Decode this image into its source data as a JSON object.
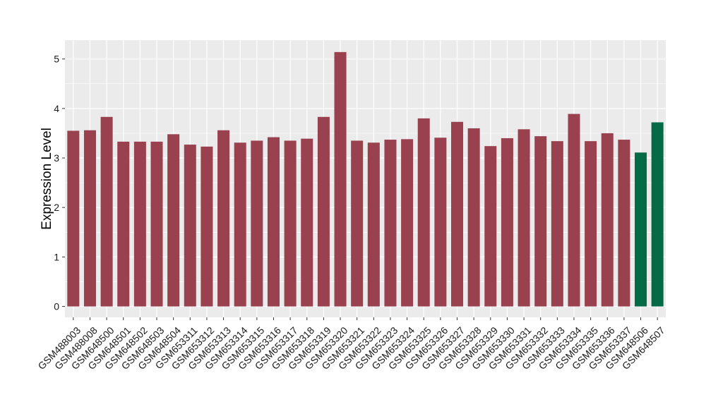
{
  "chart_data": {
    "type": "bar",
    "title": "",
    "xlabel": "",
    "ylabel": "Expression Level",
    "ylim": [
      -0.22,
      5.38
    ],
    "yticks": [
      0,
      1,
      2,
      3,
      4,
      5
    ],
    "grid": true,
    "categories": [
      "GSM488003",
      "GSM488008",
      "GSM648500",
      "GSM648501",
      "GSM648502",
      "GSM648503",
      "GSM648504",
      "GSM653311",
      "GSM653312",
      "GSM653313",
      "GSM653314",
      "GSM653315",
      "GSM653316",
      "GSM653317",
      "GSM653318",
      "GSM653319",
      "GSM653320",
      "GSM653321",
      "GSM653322",
      "GSM653323",
      "GSM653324",
      "GSM653325",
      "GSM653326",
      "GSM653327",
      "GSM653328",
      "GSM653329",
      "GSM653330",
      "GSM653331",
      "GSM653332",
      "GSM653333",
      "GSM653334",
      "GSM653335",
      "GSM653336",
      "GSM653337",
      "GSM648506",
      "GSM648507"
    ],
    "values": [
      3.55,
      3.56,
      3.83,
      3.33,
      3.33,
      3.33,
      3.48,
      3.27,
      3.23,
      3.56,
      3.31,
      3.35,
      3.42,
      3.35,
      3.39,
      3.83,
      5.14,
      3.35,
      3.31,
      3.37,
      3.38,
      3.8,
      3.41,
      3.73,
      3.6,
      3.24,
      3.4,
      3.58,
      3.44,
      3.34,
      3.89,
      3.34,
      3.5,
      3.37,
      3.11,
      3.72
    ],
    "groups": [
      "a",
      "a",
      "a",
      "a",
      "a",
      "a",
      "a",
      "a",
      "a",
      "a",
      "a",
      "a",
      "a",
      "a",
      "a",
      "a",
      "a",
      "a",
      "a",
      "a",
      "a",
      "a",
      "a",
      "a",
      "a",
      "a",
      "a",
      "a",
      "a",
      "a",
      "a",
      "a",
      "a",
      "a",
      "b",
      "b"
    ],
    "colors": {
      "a": "#9a4150",
      "b": "#056a46",
      "panel": "#ebebeb",
      "grid": "#ffffff"
    }
  }
}
